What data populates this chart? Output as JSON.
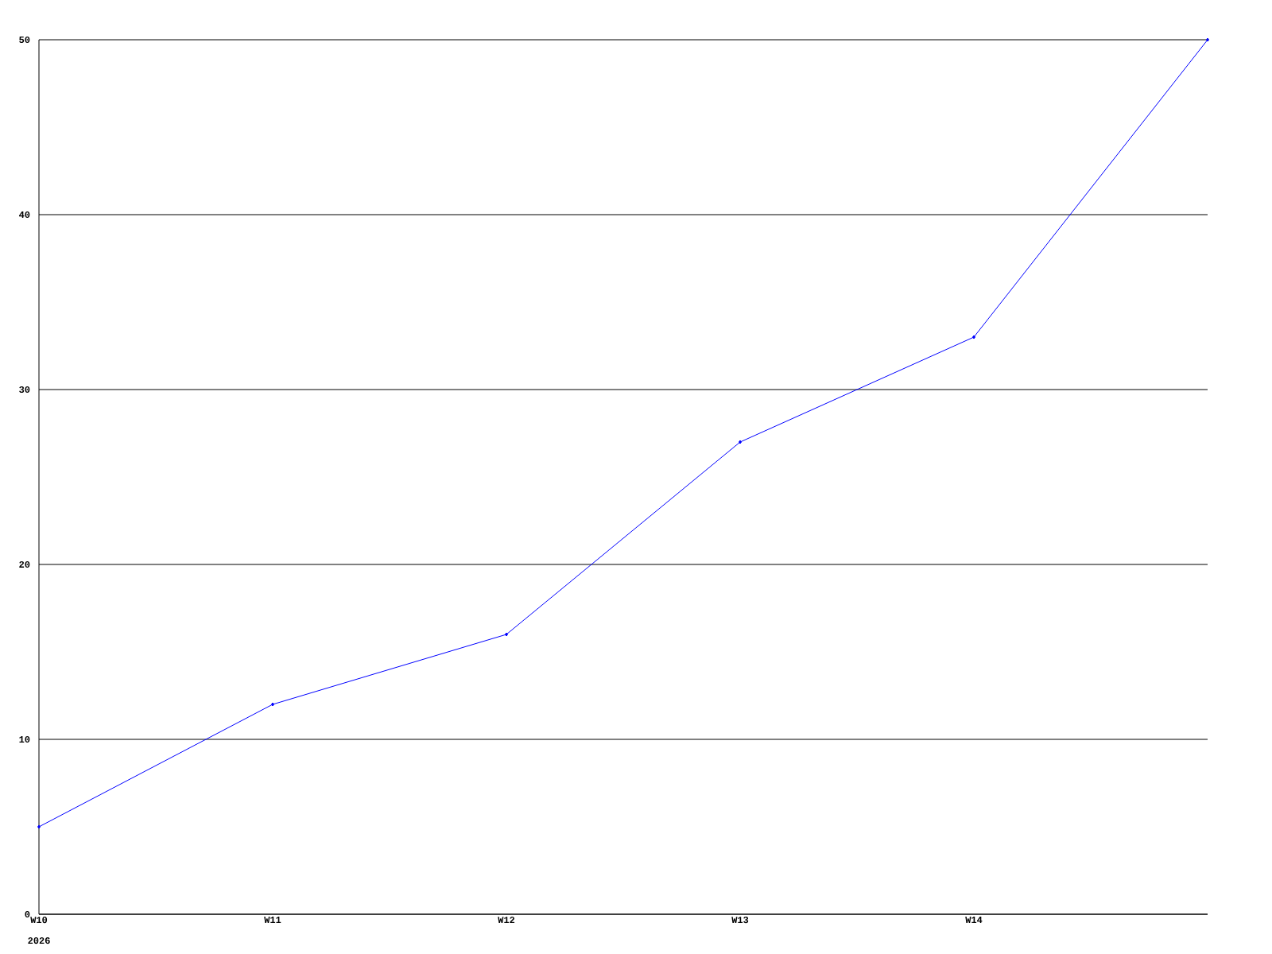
{
  "chart_data": {
    "type": "line",
    "categories": [
      "W10",
      "W11",
      "W12",
      "W13",
      "W14",
      null
    ],
    "values": [
      5,
      12,
      16,
      27,
      33,
      50
    ],
    "color": "#0000ff",
    "ylim": [
      0,
      50
    ],
    "yticks": [
      0,
      10,
      20,
      30,
      40,
      50
    ],
    "grid": "y",
    "marker": "diamond",
    "line_style": "solid",
    "annotations": [
      "2026"
    ]
  }
}
